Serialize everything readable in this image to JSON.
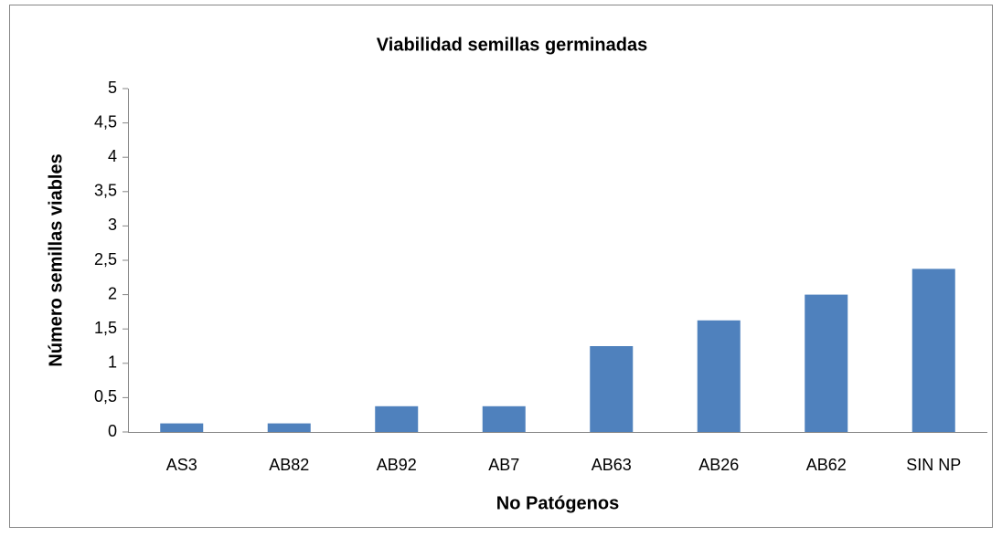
{
  "chart_data": {
    "type": "bar",
    "title": "Viabilidad semillas germinadas",
    "x_label": "No Patógenos",
    "y_label": "Número semillas viables",
    "categories": [
      "AS3",
      "AB82",
      "AB92",
      "AB7",
      "AB63",
      "AB26",
      "AB62",
      "SIN NP"
    ],
    "values": [
      0.125,
      0.125,
      0.375,
      0.375,
      1.25,
      1.625,
      2.0,
      2.375
    ],
    "color": "#4f81bd",
    "ylim": [
      0,
      5
    ],
    "yticks": [
      0,
      {
        "value": 0.5,
        "label": "0,5"
      },
      1,
      {
        "value": 1.5,
        "label": "1,5"
      },
      2,
      {
        "value": 2.5,
        "label": "2,5"
      },
      3,
      {
        "value": 3.5,
        "label": "3,5"
      },
      4,
      {
        "value": 4.5,
        "label": "4,5"
      },
      5
    ],
    "grid": false
  }
}
